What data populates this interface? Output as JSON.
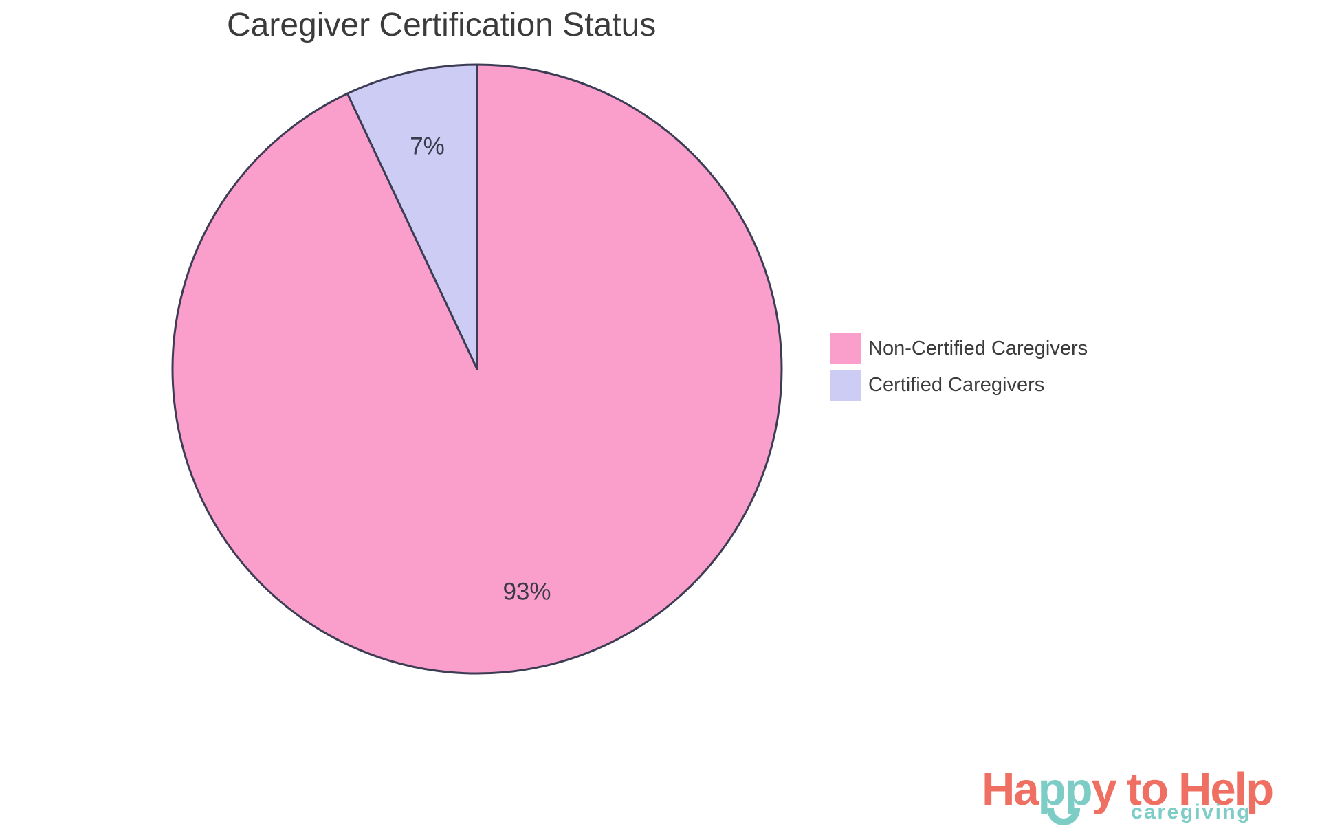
{
  "chart": {
    "title": "Caregiver Certification Status"
  },
  "chart_data": {
    "type": "pie",
    "title": "Caregiver Certification Status",
    "categories": [
      "Non-Certified Caregivers",
      "Certified Caregivers"
    ],
    "values": [
      93,
      7
    ],
    "slices": [
      {
        "label": "Non-Certified Caregivers",
        "value": 93,
        "display": "93%",
        "color": "#FA9ECB"
      },
      {
        "label": "Certified Caregivers",
        "value": 7,
        "display": "7%",
        "color": "#CCCCF5"
      }
    ],
    "start_angle": "top",
    "direction": "clockwise",
    "slice_border_color": "#3C3C55",
    "slice_border_width": 3,
    "label_color": "#3A3A4A",
    "label_font_size": 35,
    "legend_position": "right",
    "background": "#FFFFFF"
  },
  "legend": {
    "items": [
      {
        "label": "Non-Certified Caregivers",
        "color": "#FA9ECB"
      },
      {
        "label": "Certified Caregivers",
        "color": "#CCCCF5"
      }
    ]
  },
  "logo": {
    "brand_ha": "Ha",
    "brand_pp": "pp",
    "brand_y": "y",
    "brand_to": "to",
    "brand_help": "Help",
    "tagline": "caregiving",
    "coral": "#EF7063",
    "teal": "#7ECCC6"
  }
}
